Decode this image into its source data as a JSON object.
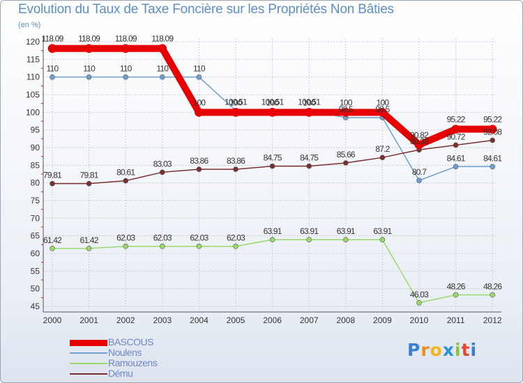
{
  "title": "Evolution du Taux de Taxe Foncière sur les Propriétés Non Bâties",
  "unit": "(en %)",
  "logo": {
    "letters": [
      "P",
      "r",
      "o",
      "x",
      "i",
      "t",
      "i"
    ],
    "colors": [
      "#3a7fd0",
      "#f08a1c",
      "#f2b51b",
      "#2b8fd9",
      "#8ac43f",
      "#e7462f",
      "#3a7fd0"
    ]
  },
  "chart_data": {
    "type": "line",
    "title": "Evolution du Taux de Taxe Foncière sur les Propriétés Non Bâties",
    "ylabel": "(en %)",
    "x": [
      "2000",
      "2001",
      "2002",
      "2003",
      "2004",
      "2005",
      "2006",
      "2007",
      "2008",
      "2009",
      "2010",
      "2011",
      "2012"
    ],
    "ylim": [
      45,
      120
    ],
    "yticks": [
      "45",
      "50",
      "55",
      "60",
      "65",
      "70",
      "75",
      "80",
      "85",
      "90",
      "95",
      "100",
      "105",
      "110",
      "115",
      "120"
    ],
    "series": [
      {
        "name": "BASCOUS",
        "color": "#e70000",
        "values": [
          118.09,
          118.09,
          118.09,
          118.09,
          100,
          100,
          100,
          100,
          100,
          100,
          90.82,
          95.22,
          95.22
        ],
        "labels": [
          "118.09",
          "118.09",
          "118.09",
          "118.09",
          "100",
          "100",
          "100",
          "100",
          "100",
          "100",
          "90.82",
          "95.22",
          "95.22"
        ]
      },
      {
        "name": "Noulens",
        "color": "#6f9fcf",
        "values": [
          110,
          110,
          110,
          110,
          110,
          100.51,
          100.51,
          100.51,
          98.5,
          98.5,
          80.7,
          84.61,
          84.61
        ],
        "labels": [
          "110",
          "110",
          "110",
          "110",
          "110",
          "100.51",
          "100.51",
          "100.51",
          "98.5",
          "98.5",
          "80.7",
          "84.61",
          "84.61"
        ]
      },
      {
        "name": "Ramouzens",
        "color": "#9ad86b",
        "values": [
          61.42,
          61.42,
          62.03,
          62.03,
          62.03,
          62.03,
          63.91,
          63.91,
          63.91,
          63.91,
          46.03,
          48.26,
          48.26
        ],
        "labels": [
          "61.42",
          "61.42",
          "62.03",
          "62.03",
          "62.03",
          "62.03",
          "63.91",
          "63.91",
          "63.91",
          "63.91",
          "46.03",
          "48.26",
          "48.26"
        ]
      },
      {
        "name": "Dému",
        "color": "#7b2f2f",
        "values": [
          79.81,
          79.81,
          80.61,
          83.03,
          83.86,
          83.86,
          84.75,
          84.75,
          85.66,
          87.2,
          89.38,
          90.72,
          92.08
        ],
        "labels": [
          "79.81",
          "79.81",
          "80.61",
          "83.03",
          "83.86",
          "83.86",
          "84.75",
          "84.75",
          "85.66",
          "87.2",
          "89.38",
          "90.72",
          "92.08"
        ]
      }
    ]
  }
}
